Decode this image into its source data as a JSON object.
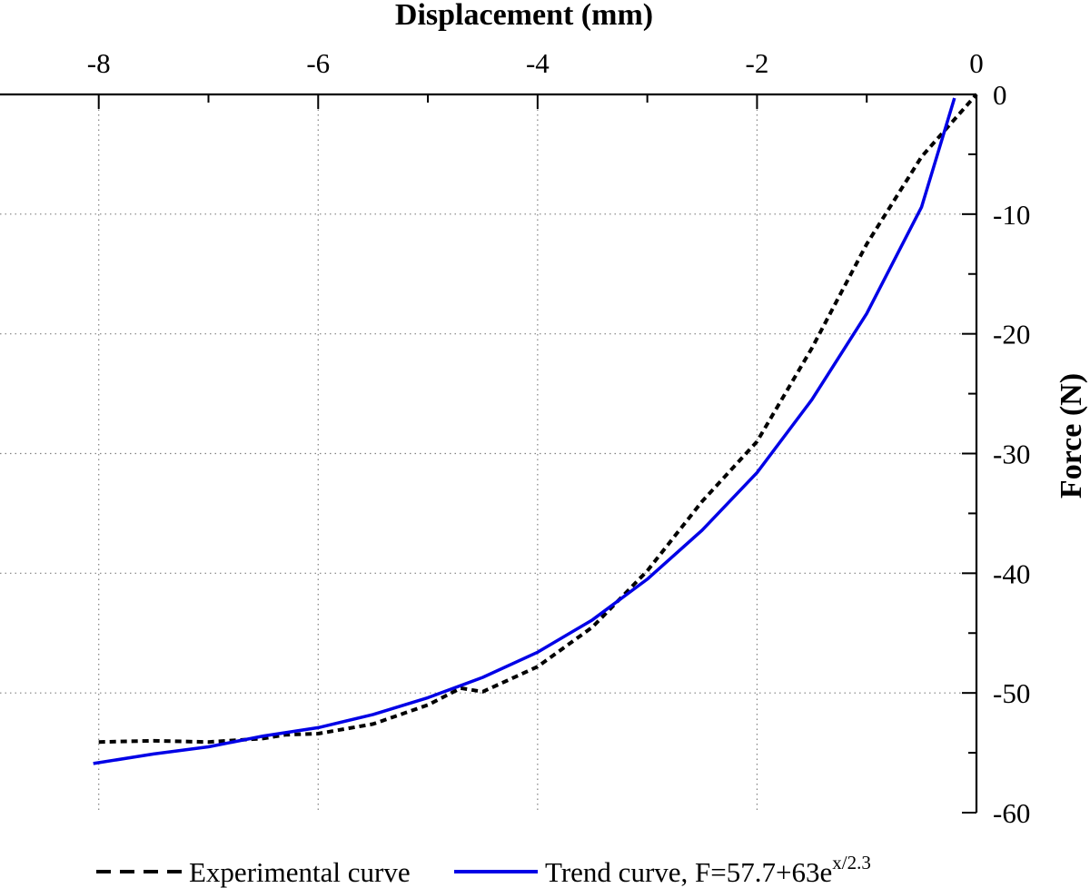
{
  "chart_data": {
    "type": "line",
    "xlabel": "Displacement (mm)",
    "ylabel": "Force (N)",
    "xlim": [
      -8.9,
      0
    ],
    "ylim": [
      -60,
      0
    ],
    "x_ticks": [
      "-8",
      "-6",
      "-4",
      "-2",
      "0"
    ],
    "y_ticks": [
      "0",
      "-10",
      "-20",
      "-30",
      "-40",
      "-50",
      "-60"
    ],
    "x_axis_position": "top",
    "y_axis_position": "right",
    "grid": true,
    "legend_position": "bottom",
    "series": [
      {
        "name": "Experimental curve",
        "style": "dashed",
        "color": "#000000",
        "x": [
          -8.0,
          -7.5,
          -7.0,
          -6.5,
          -6.3,
          -6.0,
          -5.5,
          -5.0,
          -4.7,
          -4.5,
          -4.0,
          -3.5,
          -3.0,
          -2.5,
          -2.0,
          -1.5,
          -1.0,
          -0.5,
          0.0
        ],
        "y": [
          -54.1,
          -54.0,
          -54.1,
          -53.8,
          -53.5,
          -53.4,
          -52.6,
          -51.0,
          -49.6,
          -49.9,
          -47.8,
          -44.5,
          -39.8,
          -34.0,
          -29.0,
          -21.2,
          -12.5,
          -5.2,
          0.0
        ]
      },
      {
        "name": "Trend curve, F=57.7+63e",
        "name_superscript": "x/2.3",
        "style": "solid",
        "color": "#0000e6",
        "x": [
          -8.05,
          -7.5,
          -7.0,
          -6.5,
          -6.0,
          -5.5,
          -5.0,
          -4.5,
          -4.0,
          -3.5,
          -3.0,
          -2.5,
          -2.0,
          -1.5,
          -1.0,
          -0.5,
          -0.2
        ],
        "y": [
          -55.9,
          -55.1,
          -54.5,
          -53.6,
          -52.9,
          -51.8,
          -50.4,
          -48.7,
          -46.6,
          -43.9,
          -40.5,
          -36.4,
          -31.6,
          -25.5,
          -18.3,
          -9.4,
          -0.3
        ]
      }
    ]
  }
}
